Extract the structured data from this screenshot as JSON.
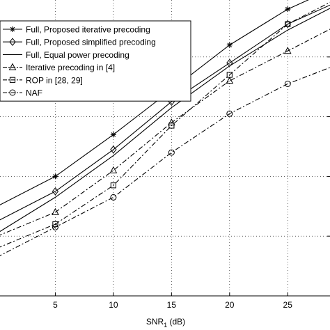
{
  "chart_data": {
    "type": "line",
    "title": "",
    "xlabel_main": "SNR",
    "xlabel_sub": "1",
    "xlabel_unit": " (dB)",
    "ylabel": "",
    "x_ticks": [
      5,
      10,
      15,
      20,
      25
    ],
    "xlim": [
      0,
      29
    ],
    "ylim": [
      0,
      1
    ],
    "grid": true,
    "legend_position": "top-left",
    "x": [
      0,
      5,
      10,
      15,
      20,
      25,
      29
    ],
    "series": [
      {
        "name": "Full, Proposed iterative precoding",
        "marker": "asterisk",
        "dash": "solid",
        "values": [
          0.3,
          0.4,
          0.54,
          0.69,
          0.84,
          0.96,
          1.03
        ]
      },
      {
        "name": "Full, Proposed simplified precoding",
        "marker": "diamond",
        "dash": "solid",
        "values": [
          0.25,
          0.35,
          0.49,
          0.65,
          0.78,
          0.91,
          0.98
        ]
      },
      {
        "name": "Full, Equal power precoding",
        "marker": "none",
        "dash": "solid",
        "values": [
          0.21,
          0.33,
          0.47,
          0.63,
          0.77,
          0.89,
          0.97
        ]
      },
      {
        "name": "Iterative precoding in [4]",
        "marker": "triangle",
        "dash": "dashdot",
        "values": [
          0.2,
          0.28,
          0.42,
          0.58,
          0.72,
          0.82,
          0.9
        ]
      },
      {
        "name": "ROP in [28, 29]",
        "marker": "square",
        "dash": "dashdot",
        "values": [
          0.16,
          0.24,
          0.37,
          0.57,
          0.74,
          0.91,
          0.99
        ]
      },
      {
        "name": "NAF",
        "marker": "circle",
        "dash": "dashdot",
        "values": [
          0.13,
          0.23,
          0.33,
          0.48,
          0.61,
          0.71,
          0.77
        ]
      }
    ]
  }
}
